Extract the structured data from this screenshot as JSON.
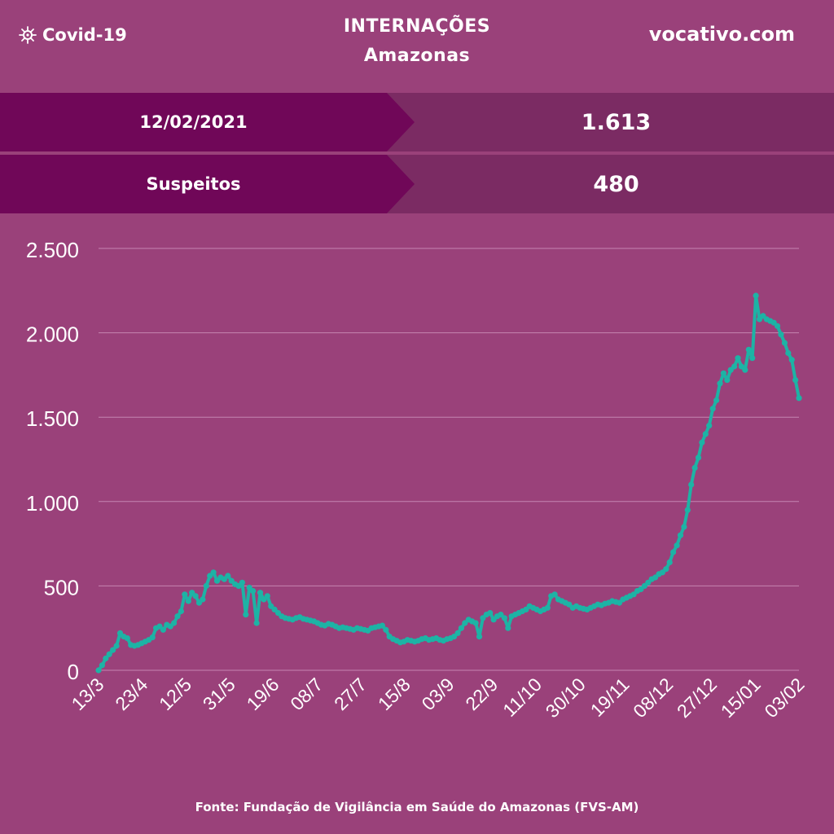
{
  "header": {
    "badge_label": "Covid-19",
    "badge_icon": "virus-icon",
    "title_line1": "INTERNAÇÕES",
    "title_line2": "Amazonas",
    "site": "vocativo.com"
  },
  "rows": [
    {
      "label": "12/02/2021",
      "value": "1.613"
    },
    {
      "label": "Suspeitos",
      "value": "480"
    }
  ],
  "footer": "Fonte: Fundação de Vigilância em Saúde do Amazonas (FVS-AM)",
  "colors": {
    "background": "#9a417a",
    "label_band": "#700758",
    "value_band": "#7b2b63",
    "line": "#1db3a5",
    "grid": "#c585b1"
  },
  "chart_data": {
    "type": "line",
    "title": "",
    "xlabel": "",
    "ylabel": "",
    "ylim": [
      0,
      2500
    ],
    "yticks": [
      0,
      500,
      1000,
      1500,
      2000,
      2500
    ],
    "ytick_labels": [
      "0",
      "500",
      "1.000",
      "1.500",
      "2.000",
      "2.500"
    ],
    "xtick_labels": [
      "13/3",
      "23/4",
      "12/5",
      "31/5",
      "19/6",
      "08/7",
      "27/7",
      "15/8",
      "03/9",
      "22/9",
      "11/10",
      "30/10",
      "19/11",
      "08/12",
      "27/12",
      "15/01",
      "03/02"
    ],
    "grid": true,
    "series": [
      {
        "values": [
          0,
          30,
          70,
          95,
          120,
          145,
          220,
          200,
          190,
          150,
          145,
          150,
          160,
          170,
          180,
          195,
          250,
          260,
          240,
          270,
          260,
          280,
          320,
          350,
          450,
          410,
          460,
          440,
          400,
          420,
          500,
          560,
          580,
          530,
          550,
          540,
          560,
          530,
          510,
          500,
          520,
          330,
          490,
          470,
          280,
          460,
          420,
          440,
          380,
          360,
          340,
          320,
          310,
          305,
          300,
          310,
          315,
          305,
          300,
          295,
          290,
          280,
          270,
          265,
          275,
          270,
          260,
          250,
          255,
          250,
          245,
          240,
          250,
          245,
          240,
          235,
          250,
          255,
          260,
          265,
          240,
          200,
          185,
          175,
          165,
          170,
          180,
          175,
          170,
          175,
          185,
          190,
          180,
          185,
          190,
          180,
          175,
          185,
          190,
          200,
          220,
          250,
          280,
          300,
          290,
          280,
          200,
          310,
          330,
          340,
          300,
          320,
          330,
          310,
          250,
          320,
          330,
          340,
          350,
          360,
          380,
          370,
          360,
          350,
          360,
          370,
          440,
          450,
          420,
          410,
          400,
          390,
          370,
          380,
          370,
          365,
          360,
          370,
          380,
          390,
          385,
          395,
          400,
          410,
          405,
          400,
          420,
          430,
          440,
          450,
          470,
          480,
          500,
          520,
          540,
          550,
          570,
          580,
          600,
          640,
          700,
          740,
          800,
          850,
          950,
          1100,
          1200,
          1260,
          1350,
          1400,
          1450,
          1550,
          1600,
          1700,
          1760,
          1720,
          1780,
          1800,
          1850,
          1800,
          1780,
          1900,
          1850,
          2220,
          2080,
          2100,
          2080,
          2070,
          2060,
          2040,
          1990,
          1940,
          1880,
          1840,
          1720,
          1613
        ]
      }
    ]
  }
}
